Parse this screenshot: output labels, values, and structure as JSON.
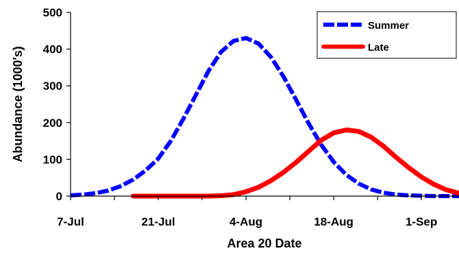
{
  "chart_data": {
    "type": "line",
    "title": "",
    "xlabel": "Area 20 Date",
    "ylabel": "Abundance (1000's)",
    "x_ticks": [
      "7-Jul",
      "21-Jul",
      "4-Aug",
      "18-Aug",
      "1-Sep"
    ],
    "x_tick_day_index": [
      0,
      14,
      28,
      42,
      56
    ],
    "xlim_days": [
      0,
      62
    ],
    "y_ticks": [
      "0",
      "100",
      "200",
      "300",
      "400",
      "500"
    ],
    "ylim": [
      0,
      500
    ],
    "grid": false,
    "legend_position": "top-right",
    "series": [
      {
        "name": "Summer",
        "color": "#0000ff",
        "style": "dashed",
        "x": [
          "7-Jul",
          "9-Jul",
          "11-Jul",
          "13-Jul",
          "15-Jul",
          "17-Jul",
          "19-Jul",
          "21-Jul",
          "23-Jul",
          "25-Jul",
          "27-Jul",
          "29-Jul",
          "31-Jul",
          "2-Aug",
          "4-Aug",
          "6-Aug",
          "8-Aug",
          "10-Aug",
          "12-Aug",
          "14-Aug",
          "16-Aug",
          "18-Aug",
          "20-Aug",
          "22-Aug",
          "24-Aug",
          "26-Aug",
          "28-Aug",
          "30-Aug",
          "1-Sep",
          "3-Sep",
          "5-Sep",
          "7-Sep"
        ],
        "y": [
          2,
          4,
          8,
          15,
          27,
          45,
          70,
          102,
          150,
          210,
          275,
          340,
          392,
          422,
          430,
          415,
          378,
          325,
          262,
          198,
          140,
          93,
          58,
          34,
          18,
          9,
          4,
          2,
          1,
          0,
          0,
          0
        ]
      },
      {
        "name": "Late",
        "color": "#ff0000",
        "style": "solid",
        "x": [
          "17-Jul",
          "19-Jul",
          "21-Jul",
          "23-Jul",
          "25-Jul",
          "27-Jul",
          "29-Jul",
          "31-Jul",
          "2-Aug",
          "4-Aug",
          "6-Aug",
          "8-Aug",
          "10-Aug",
          "12-Aug",
          "14-Aug",
          "16-Aug",
          "18-Aug",
          "20-Aug",
          "22-Aug",
          "24-Aug",
          "26-Aug",
          "28-Aug",
          "30-Aug",
          "1-Sep",
          "3-Sep",
          "5-Sep",
          "7-Sep"
        ],
        "y": [
          0,
          0,
          0,
          0,
          0,
          0,
          0,
          1,
          4,
          12,
          24,
          42,
          65,
          92,
          122,
          152,
          172,
          180,
          176,
          160,
          135,
          105,
          77,
          52,
          32,
          17,
          8
        ]
      }
    ]
  }
}
